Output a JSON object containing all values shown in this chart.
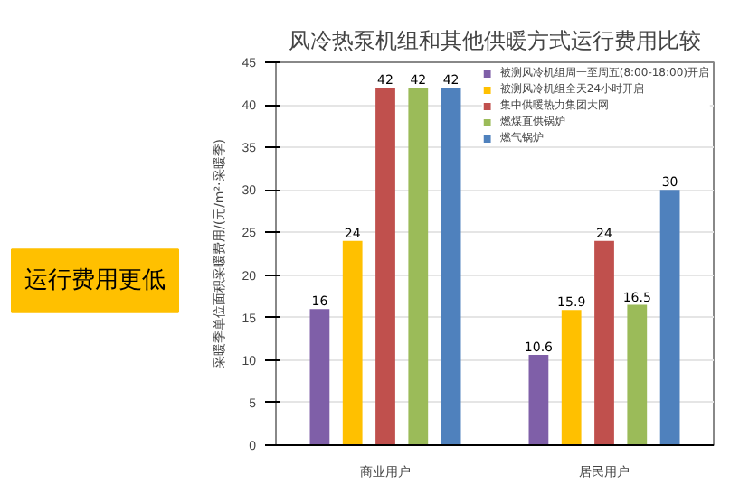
{
  "chart_data": {
    "type": "bar",
    "title": "风冷热泵机组和其他供暖方式运行费用比较",
    "ylabel": "采暖季单位面积采暖费用/(元/m²·采暖季)",
    "categories": [
      "商业用户",
      "居民用户"
    ],
    "series": [
      {
        "name": "被测风冷机组周一至周五(8:00-18:00)开启",
        "color": "#7f5fa8",
        "values": [
          16,
          10.6
        ]
      },
      {
        "name": "被测风冷机组全天24小时开启",
        "color": "#ffc000",
        "values": [
          24,
          15.9
        ]
      },
      {
        "name": "集中供暖热力集团大网",
        "color": "#c0504d",
        "values": [
          42,
          24
        ]
      },
      {
        "name": "燃煤直供锅炉",
        "color": "#9bbb59",
        "values": [
          42,
          16.5
        ]
      },
      {
        "name": "燃气锅炉",
        "color": "#4f81bd",
        "values": [
          42,
          30
        ]
      }
    ],
    "ylim": [
      0,
      45
    ],
    "yticks": [
      0,
      5,
      10,
      15,
      20,
      25,
      30,
      35,
      40,
      45
    ],
    "grid": "y",
    "legend": "top right",
    "data_labels": true,
    "annotations": [
      "运行费用更低"
    ]
  }
}
